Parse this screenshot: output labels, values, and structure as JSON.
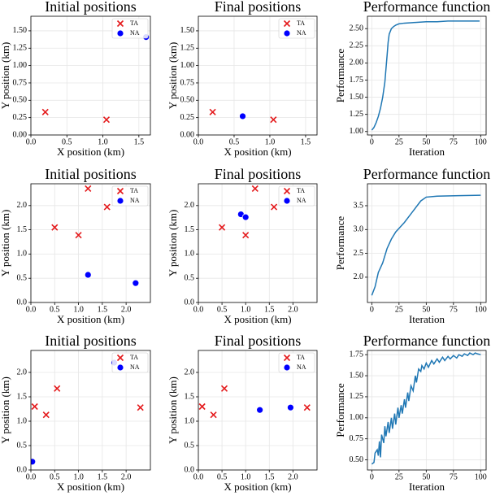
{
  "chart_data": [
    {
      "type": "scatter",
      "title": "Initial positions",
      "x_label": "X position (km)",
      "y_label": "Y position (km)",
      "xlim": [
        0,
        1.66
      ],
      "xticks": [
        {
          "value": 0,
          "label": "0.0"
        },
        0.5,
        {
          "value": 1,
          "label": "1.0"
        },
        1.5
      ],
      "ylim": [
        0,
        1.71
      ],
      "yticks": [
        {
          "value": 0,
          "label": "0.00"
        },
        0.25,
        {
          "value": 0.5,
          "label": "0.50"
        },
        0.75,
        {
          "value": 1,
          "label": "1.00"
        },
        1.25,
        {
          "value": 1.5,
          "label": "1.50"
        }
      ],
      "grid": true,
      "legend": "upper right",
      "series": [
        {
          "name": "TA",
          "color": "#e41a1c",
          "x": [
            0.2,
            1.05
          ],
          "values": [
            0.33,
            0.22
          ]
        },
        {
          "name": "NA",
          "color": "#0000ff",
          "x": [
            1.6
          ],
          "values": [
            1.41
          ]
        }
      ]
    },
    {
      "type": "scatter",
      "title": "Final positions",
      "x_label": "X position (km)",
      "y_label": "Y position (km)",
      "xlim": [
        0,
        1.66
      ],
      "xticks": [
        {
          "value": 0,
          "label": "0.0"
        },
        0.5,
        {
          "value": 1,
          "label": "1.0"
        },
        1.5
      ],
      "ylim": [
        0,
        1.71
      ],
      "yticks": [
        {
          "value": 0,
          "label": "0.00"
        },
        0.25,
        {
          "value": 0.5,
          "label": "0.50"
        },
        0.75,
        {
          "value": 1,
          "label": "1.00"
        },
        1.25,
        {
          "value": 1.5,
          "label": "1.50"
        }
      ],
      "grid": true,
      "legend": "upper right",
      "series": [
        {
          "name": "TA",
          "color": "#e41a1c",
          "x": [
            0.2,
            1.05
          ],
          "values": [
            0.33,
            0.22
          ]
        },
        {
          "name": "NA",
          "color": "#0000ff",
          "x": [
            0.62
          ],
          "values": [
            0.27
          ]
        }
      ]
    },
    {
      "type": "line",
      "title": "Performance function",
      "x_label": "Iteration",
      "y_label": "Performance",
      "xlim": [
        -4,
        105
      ],
      "xticks": [
        0,
        25,
        50,
        75,
        100
      ],
      "ylim": [
        0.95,
        2.68
      ],
      "yticks": [
        {
          "value": 1,
          "label": "1.00"
        },
        1.25,
        {
          "value": 1.5,
          "label": "1.50"
        },
        1.75,
        {
          "value": 2,
          "label": "2.00"
        },
        2.25,
        {
          "value": 2.5,
          "label": "2.50"
        }
      ],
      "grid": true,
      "color": "#1f77b4",
      "x": [
        0,
        2,
        4,
        6,
        8,
        10,
        12,
        14,
        15,
        16,
        18,
        20,
        22,
        25,
        30,
        40,
        50,
        60,
        70,
        80,
        90,
        99
      ],
      "values": [
        1.02,
        1.06,
        1.13,
        1.22,
        1.34,
        1.5,
        1.72,
        2.1,
        2.3,
        2.42,
        2.5,
        2.53,
        2.55,
        2.57,
        2.58,
        2.59,
        2.6,
        2.6,
        2.61,
        2.61,
        2.61,
        2.61
      ]
    },
    {
      "type": "scatter",
      "title": "Initial positions",
      "x_label": "X position (km)",
      "y_label": "Y position (km)",
      "xlim": [
        0,
        2.51
      ],
      "xticks": [
        {
          "value": 0,
          "label": "0.0"
        },
        0.5,
        {
          "value": 1,
          "label": "1.0"
        },
        1.5,
        {
          "value": 2,
          "label": "2.0"
        }
      ],
      "ylim": [
        0,
        2.45
      ],
      "yticks": [
        {
          "value": 0,
          "label": "0.0"
        },
        0.5,
        {
          "value": 1,
          "label": "1.0"
        },
        1.5,
        {
          "value": 2,
          "label": "2.0"
        }
      ],
      "grid": true,
      "legend": "upper right",
      "series": [
        {
          "name": "TA",
          "color": "#e41a1c",
          "x": [
            1.2,
            0.5,
            1.6,
            1.0
          ],
          "values": [
            2.35,
            1.55,
            1.97,
            1.39
          ]
        },
        {
          "name": "NA",
          "color": "#0000ff",
          "x": [
            1.2,
            2.2
          ],
          "values": [
            0.57,
            0.4
          ]
        }
      ]
    },
    {
      "type": "scatter",
      "title": "Final positions",
      "x_label": "X position (km)",
      "y_label": "Y position (km)",
      "xlim": [
        0,
        2.51
      ],
      "xticks": [
        {
          "value": 0,
          "label": "0.0"
        },
        0.5,
        {
          "value": 1,
          "label": "1.0"
        },
        1.5,
        {
          "value": 2,
          "label": "2.0"
        }
      ],
      "ylim": [
        0,
        2.45
      ],
      "yticks": [
        {
          "value": 0,
          "label": "0.0"
        },
        0.5,
        {
          "value": 1,
          "label": "1.0"
        },
        1.5,
        {
          "value": 2,
          "label": "2.0"
        }
      ],
      "grid": true,
      "legend": "upper right",
      "series": [
        {
          "name": "TA",
          "color": "#e41a1c",
          "x": [
            1.2,
            0.5,
            1.6,
            1.0
          ],
          "values": [
            2.35,
            1.55,
            1.97,
            1.39
          ]
        },
        {
          "name": "NA",
          "color": "#0000ff",
          "x": [
            0.9,
            1.0
          ],
          "values": [
            1.82,
            1.76
          ]
        }
      ]
    },
    {
      "type": "line",
      "title": "Performance function",
      "x_label": "Iteration",
      "y_label": "Performance",
      "xlim": [
        -4,
        105
      ],
      "xticks": [
        0,
        25,
        50,
        75,
        100
      ],
      "ylim": [
        1.47,
        3.96
      ],
      "yticks": [
        {
          "value": 2,
          "label": "2.0"
        },
        2.5,
        {
          "value": 3,
          "label": "3.0"
        },
        3.5
      ],
      "grid": true,
      "color": "#1f77b4",
      "x": [
        0,
        3,
        6,
        10,
        14,
        18,
        22,
        26,
        30,
        35,
        40,
        45,
        50,
        60,
        80,
        100
      ],
      "values": [
        1.62,
        1.8,
        2.1,
        2.3,
        2.6,
        2.8,
        2.95,
        3.05,
        3.15,
        3.3,
        3.45,
        3.6,
        3.68,
        3.7,
        3.71,
        3.72
      ]
    },
    {
      "type": "scatter",
      "title": "Initial positions",
      "x_label": "X position (km)",
      "y_label": "Y position (km)",
      "xlim": [
        0,
        2.51
      ],
      "xticks": [
        {
          "value": 0,
          "label": "0.0"
        },
        0.5,
        {
          "value": 1,
          "label": "1.0"
        },
        1.5,
        {
          "value": 2,
          "label": "2.0"
        }
      ],
      "ylim": [
        0,
        2.45
      ],
      "yticks": [
        {
          "value": 0,
          "label": "0.0"
        },
        0.5,
        {
          "value": 1,
          "label": "1.0"
        },
        1.5,
        {
          "value": 2,
          "label": "2.0"
        }
      ],
      "grid": true,
      "legend": "upper right",
      "series": [
        {
          "name": "TA",
          "color": "#e41a1c",
          "x": [
            0.08,
            0.32,
            0.55,
            2.3
          ],
          "values": [
            1.3,
            1.13,
            1.67,
            1.28
          ]
        },
        {
          "name": "NA",
          "color": "#0000ff",
          "x": [
            0.03,
            1.75
          ],
          "values": [
            0.17,
            2.2
          ]
        }
      ]
    },
    {
      "type": "scatter",
      "title": "Final positions",
      "x_label": "X position (km)",
      "y_label": "Y position (km)",
      "xlim": [
        0,
        2.51
      ],
      "xticks": [
        {
          "value": 0,
          "label": "0.0"
        },
        0.5,
        {
          "value": 1,
          "label": "1.0"
        },
        1.5,
        {
          "value": 2,
          "label": "2.0"
        }
      ],
      "ylim": [
        0,
        2.45
      ],
      "yticks": [
        {
          "value": 0,
          "label": "0.0"
        },
        0.5,
        {
          "value": 1,
          "label": "1.0"
        },
        1.5,
        {
          "value": 2,
          "label": "2.0"
        }
      ],
      "grid": true,
      "legend": "upper right",
      "series": [
        {
          "name": "TA",
          "color": "#e41a1c",
          "x": [
            0.08,
            0.32,
            0.55,
            2.3
          ],
          "values": [
            1.3,
            1.13,
            1.67,
            1.28
          ]
        },
        {
          "name": "NA",
          "color": "#0000ff",
          "x": [
            1.3,
            1.95
          ],
          "values": [
            1.23,
            1.28
          ]
        }
      ]
    },
    {
      "type": "line",
      "title": "Performance function",
      "x_label": "Iteration",
      "y_label": "Performance",
      "xlim": [
        -4,
        105
      ],
      "xticks": [
        0,
        25,
        50,
        75,
        100
      ],
      "ylim": [
        0.38,
        1.8
      ],
      "yticks": [
        {
          "value": 0.5,
          "label": "0.50"
        },
        0.75,
        {
          "value": 1,
          "label": "1.00"
        },
        1.25,
        {
          "value": 1.5,
          "label": "1.50"
        },
        1.75
      ],
      "grid": true,
      "color": "#1f77b4",
      "x": [
        0,
        2,
        3,
        5,
        6,
        7,
        8,
        9,
        11,
        12,
        13,
        15,
        16,
        18,
        19,
        21,
        22,
        24,
        25,
        27,
        28,
        30,
        31,
        33,
        34,
        36,
        38,
        40,
        41,
        43,
        45,
        46,
        48,
        50,
        52,
        55,
        57,
        60,
        62,
        65,
        67,
        70,
        72,
        75,
        78,
        80,
        83,
        85,
        88,
        90,
        93,
        95,
        97,
        100
      ],
      "values": [
        0.45,
        0.47,
        0.58,
        0.62,
        0.55,
        0.72,
        0.53,
        0.8,
        0.7,
        0.9,
        0.78,
        0.95,
        0.82,
        1.0,
        0.87,
        1.05,
        0.92,
        1.12,
        1.0,
        1.15,
        1.05,
        1.22,
        1.12,
        1.3,
        1.2,
        1.38,
        1.32,
        1.5,
        1.42,
        1.58,
        1.55,
        1.62,
        1.58,
        1.65,
        1.6,
        1.68,
        1.64,
        1.7,
        1.66,
        1.72,
        1.68,
        1.73,
        1.7,
        1.74,
        1.71,
        1.75,
        1.73,
        1.76,
        1.74,
        1.77,
        1.75,
        1.77,
        1.76,
        1.75
      ]
    }
  ]
}
